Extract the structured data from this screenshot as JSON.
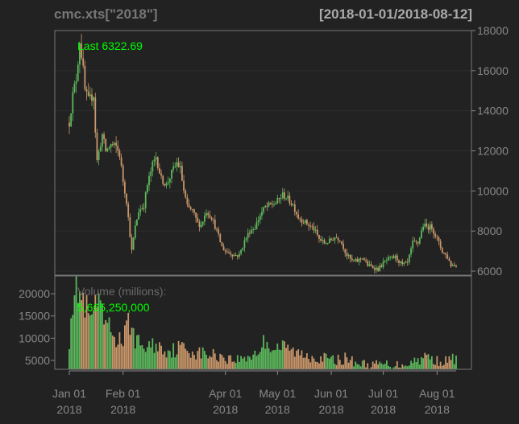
{
  "title": "cmc.xts[\"2018\"]",
  "date_range": "[2018-01-01/2018-08-12]",
  "colors": {
    "background": "#222222",
    "panel_border": "#777777",
    "grid": "#2c2c2c",
    "axis_text": "#888888",
    "up": "#5cb85c",
    "down": "#c9976a",
    "last_label": "#00ff00"
  },
  "chart_data": [
    {
      "type": "candlestick",
      "ylim": [
        5800,
        18000
      ],
      "yticks": [
        6000,
        8000,
        10000,
        12000,
        14000,
        16000,
        18000
      ],
      "ytick_labels": [
        "6000",
        "8000",
        "10000",
        "12000",
        "14000",
        "16000",
        "18000"
      ],
      "annotation": "Last 6322.69",
      "close_path": [
        [
          "2018-01-01",
          13400
        ],
        [
          "2018-01-03",
          14800
        ],
        [
          "2018-01-05",
          15600
        ],
        [
          "2018-01-06",
          16500
        ],
        [
          "2018-01-07",
          17500
        ],
        [
          "2018-01-08",
          16800
        ],
        [
          "2018-01-09",
          16000
        ],
        [
          "2018-01-10",
          15000
        ],
        [
          "2018-01-12",
          14500
        ],
        [
          "2018-01-15",
          14800
        ],
        [
          "2018-01-16",
          13000
        ],
        [
          "2018-01-17",
          11500
        ],
        [
          "2018-01-20",
          12800
        ],
        [
          "2018-01-22",
          12000
        ],
        [
          "2018-01-25",
          12300
        ],
        [
          "2018-01-28",
          12200
        ],
        [
          "2018-01-30",
          11800
        ],
        [
          "2018-02-01",
          10500
        ],
        [
          "2018-02-03",
          9500
        ],
        [
          "2018-02-05",
          7800
        ],
        [
          "2018-02-06",
          7000
        ],
        [
          "2018-02-08",
          8200
        ],
        [
          "2018-02-10",
          9000
        ],
        [
          "2018-02-13",
          9300
        ],
        [
          "2018-02-15",
          10300
        ],
        [
          "2018-02-18",
          11300
        ],
        [
          "2018-02-20",
          11700
        ],
        [
          "2018-02-23",
          10600
        ],
        [
          "2018-02-26",
          10300
        ],
        [
          "2018-03-01",
          10900
        ],
        [
          "2018-03-04",
          11400
        ],
        [
          "2018-03-06",
          11100
        ],
        [
          "2018-03-08",
          10000
        ],
        [
          "2018-03-10",
          9200
        ],
        [
          "2018-03-13",
          9000
        ],
        [
          "2018-03-16",
          8400
        ],
        [
          "2018-03-18",
          8300
        ],
        [
          "2018-03-21",
          9000
        ],
        [
          "2018-03-24",
          8700
        ],
        [
          "2018-03-27",
          8000
        ],
        [
          "2018-03-30",
          7200
        ],
        [
          "2018-04-01",
          7000
        ],
        [
          "2018-04-04",
          6900
        ],
        [
          "2018-04-06",
          6800
        ],
        [
          "2018-04-09",
          6800
        ],
        [
          "2018-04-12",
          7500
        ],
        [
          "2018-04-15",
          8000
        ],
        [
          "2018-04-18",
          8200
        ],
        [
          "2018-04-21",
          8800
        ],
        [
          "2018-04-24",
          9200
        ],
        [
          "2018-04-27",
          9300
        ],
        [
          "2018-04-30",
          9400
        ],
        [
          "2018-05-04",
          9800
        ],
        [
          "2018-05-06",
          9700
        ],
        [
          "2018-05-10",
          9300
        ],
        [
          "2018-05-13",
          8700
        ],
        [
          "2018-05-16",
          8500
        ],
        [
          "2018-05-19",
          8300
        ],
        [
          "2018-05-22",
          8100
        ],
        [
          "2018-05-25",
          7600
        ],
        [
          "2018-05-28",
          7400
        ],
        [
          "2018-05-31",
          7500
        ],
        [
          "2018-06-03",
          7700
        ],
        [
          "2018-06-06",
          7600
        ],
        [
          "2018-06-10",
          6800
        ],
        [
          "2018-06-13",
          6500
        ],
        [
          "2018-06-16",
          6500
        ],
        [
          "2018-06-19",
          6700
        ],
        [
          "2018-06-22",
          6300
        ],
        [
          "2018-06-25",
          6200
        ],
        [
          "2018-06-28",
          6100
        ],
        [
          "2018-07-01",
          6400
        ],
        [
          "2018-07-04",
          6600
        ],
        [
          "2018-07-08",
          6700
        ],
        [
          "2018-07-12",
          6300
        ],
        [
          "2018-07-15",
          6400
        ],
        [
          "2018-07-18",
          7400
        ],
        [
          "2018-07-21",
          7400
        ],
        [
          "2018-07-24",
          8300
        ],
        [
          "2018-07-26",
          8200
        ],
        [
          "2018-07-29",
          8200
        ],
        [
          "2018-08-01",
          7600
        ],
        [
          "2018-08-04",
          7000
        ],
        [
          "2018-08-07",
          6700
        ],
        [
          "2018-08-09",
          6300
        ],
        [
          "2018-08-12",
          6322.69
        ]
      ]
    },
    {
      "type": "bar",
      "ylim": [
        3000,
        24000
      ],
      "yticks": [
        5000,
        10000,
        15000,
        20000
      ],
      "ytick_labels": [
        "5000",
        "10000",
        "15000",
        "20000"
      ],
      "annotation_title": "Volume (millions):",
      "annotation_value": "5,665,250,000",
      "volume_path": [
        [
          "2018-01-01",
          10000
        ],
        [
          "2018-01-02",
          17000
        ],
        [
          "2018-01-04",
          21000
        ],
        [
          "2018-01-05",
          24000
        ],
        [
          "2018-01-07",
          20000
        ],
        [
          "2018-01-09",
          17500
        ],
        [
          "2018-01-12",
          15000
        ],
        [
          "2018-01-14",
          13000
        ],
        [
          "2018-01-16",
          19000
        ],
        [
          "2018-01-17",
          17000
        ],
        [
          "2018-01-20",
          14500
        ],
        [
          "2018-01-24",
          12000
        ],
        [
          "2018-01-28",
          10000
        ],
        [
          "2018-02-01",
          9500
        ],
        [
          "2018-02-05",
          14000
        ],
        [
          "2018-02-06",
          12000
        ],
        [
          "2018-02-09",
          9000
        ],
        [
          "2018-02-14",
          8000
        ],
        [
          "2018-02-20",
          8500
        ],
        [
          "2018-02-25",
          7500
        ],
        [
          "2018-03-01",
          7200
        ],
        [
          "2018-03-06",
          8000
        ],
        [
          "2018-03-10",
          7500
        ],
        [
          "2018-03-15",
          6800
        ],
        [
          "2018-03-20",
          6500
        ],
        [
          "2018-03-25",
          6200
        ],
        [
          "2018-03-30",
          6000
        ],
        [
          "2018-04-05",
          5200
        ],
        [
          "2018-04-10",
          5300
        ],
        [
          "2018-04-15",
          6000
        ],
        [
          "2018-04-20",
          7000
        ],
        [
          "2018-04-24",
          9500
        ],
        [
          "2018-04-28",
          8000
        ],
        [
          "2018-05-03",
          8000
        ],
        [
          "2018-05-08",
          7500
        ],
        [
          "2018-05-13",
          6500
        ],
        [
          "2018-05-18",
          6200
        ],
        [
          "2018-05-23",
          5800
        ],
        [
          "2018-05-28",
          5500
        ],
        [
          "2018-06-03",
          5000
        ],
        [
          "2018-06-10",
          5500
        ],
        [
          "2018-06-15",
          4500
        ],
        [
          "2018-06-20",
          4200
        ],
        [
          "2018-06-25",
          4000
        ],
        [
          "2018-07-01",
          4200
        ],
        [
          "2018-07-07",
          4000
        ],
        [
          "2018-07-12",
          4100
        ],
        [
          "2018-07-17",
          4600
        ],
        [
          "2018-07-23",
          5500
        ],
        [
          "2018-07-26",
          6000
        ],
        [
          "2018-07-31",
          5000
        ],
        [
          "2018-08-06",
          4800
        ],
        [
          "2018-08-12",
          5665.25
        ]
      ]
    }
  ],
  "x_axis": {
    "start": "2018-01-01",
    "end": "2018-08-12",
    "ticks": [
      {
        "date": "2018-01-01",
        "label": "Jan 01",
        "year": "2018"
      },
      {
        "date": "2018-02-01",
        "label": "Feb 01",
        "year": "2018"
      },
      {
        "date": "2018-04-01",
        "label": "Apr 01",
        "year": "2018"
      },
      {
        "date": "2018-05-01",
        "label": "May 01",
        "year": "2018"
      },
      {
        "date": "2018-06-01",
        "label": "Jun 01",
        "year": "2018"
      },
      {
        "date": "2018-07-01",
        "label": "Jul 01",
        "year": "2018"
      },
      {
        "date": "2018-08-01",
        "label": "Aug 01",
        "year": "2018"
      }
    ]
  }
}
